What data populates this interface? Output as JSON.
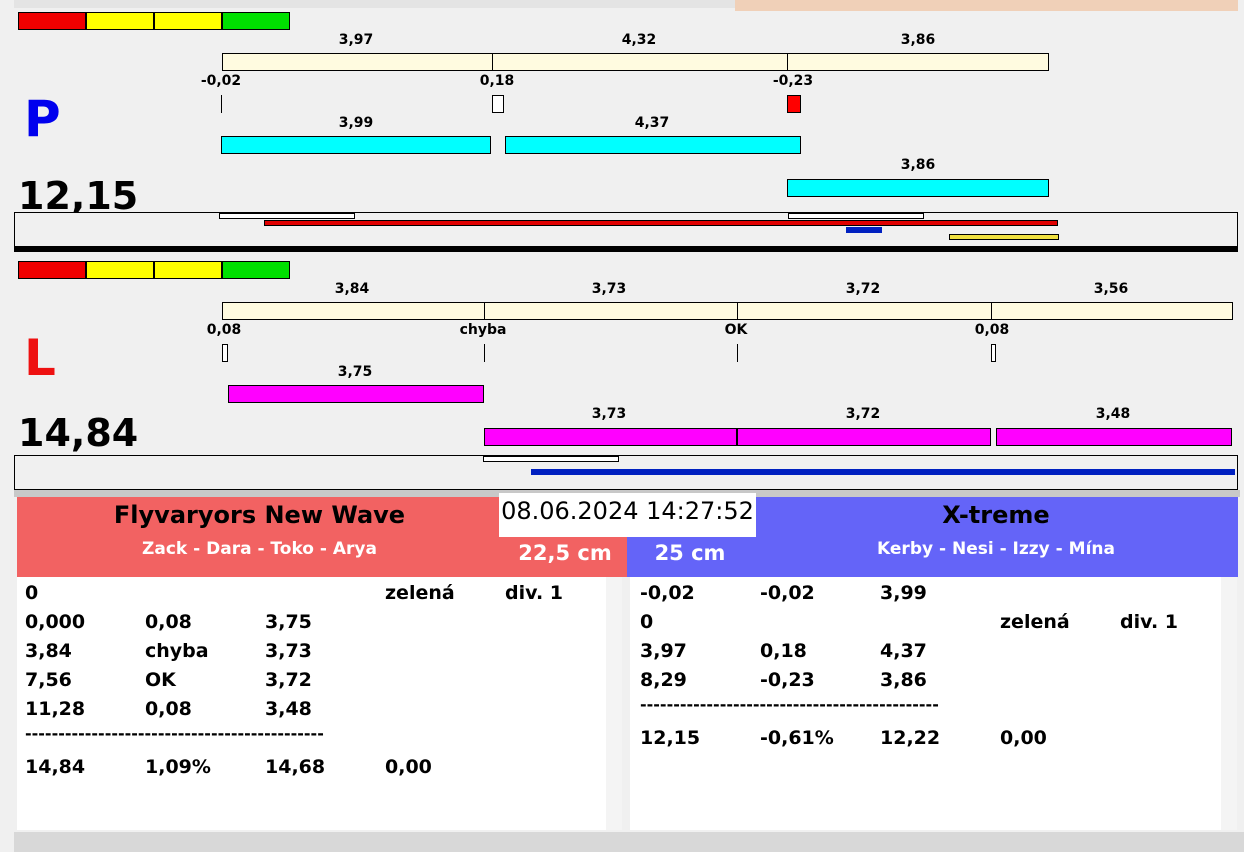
{
  "panels": [
    {
      "label": "P",
      "total": "12,15",
      "row1": [
        "3,97",
        "4,32",
        "3,86"
      ],
      "row2": [
        "-0,02",
        "0,18",
        "-0,23"
      ],
      "row3": [
        "3,99",
        "4,37"
      ],
      "row4": [
        "3,86"
      ]
    },
    {
      "label": "L",
      "total": "14,84",
      "row1": [
        "3,84",
        "3,73",
        "3,72",
        "3,56"
      ],
      "row2": [
        "0,08",
        "chyba",
        "OK",
        "0,08"
      ],
      "row3": [
        "3,75"
      ],
      "row4": [
        "3,73",
        "3,72",
        "3,48"
      ]
    }
  ],
  "left_team": {
    "name": "Flyvaryors New Wave",
    "members": "Zack - Dara - Toko - Arya",
    "distance": "22,5 cm"
  },
  "timestamp": "08.06.2024 14:27:52",
  "right_team": {
    "name": "X-treme",
    "members": "Kerby - Nesi - Izzy - Mína",
    "distance": "25 cm"
  },
  "left_table": {
    "rows": [
      [
        "0",
        "zelená",
        "div. 1"
      ],
      [
        "0,000",
        "0,08",
        "3,75"
      ],
      [
        "3,84",
        "chyba",
        "3,73"
      ],
      [
        "7,56",
        "OK",
        "3,72"
      ],
      [
        "11,28",
        "0,08",
        "3,48"
      ]
    ],
    "separator": "---------------------------------------------",
    "total": [
      "14,84",
      "1,09%",
      "14,68",
      "0,00"
    ]
  },
  "right_table": {
    "rows": [
      [
        "-0,02",
        "-0,02",
        "3,99"
      ],
      [
        "0",
        "zelená",
        "div. 1"
      ],
      [
        "3,97",
        "0,18",
        "4,37"
      ],
      [
        "8,29",
        "-0,23",
        "3,86"
      ]
    ],
    "separator": "---------------------------------------------",
    "total": [
      "12,15",
      "-0,61%",
      "12,22",
      "0,00"
    ]
  }
}
